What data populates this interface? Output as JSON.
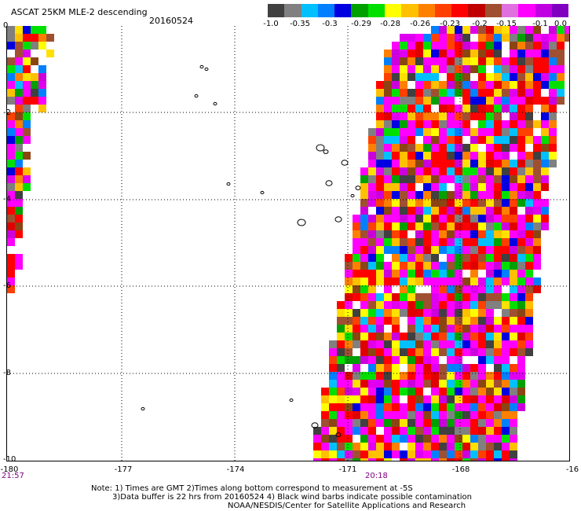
{
  "header": {
    "title": "ASCAT 25KM MLE-2 descending",
    "date": "20160524"
  },
  "colorbar": {
    "colors": [
      "#404040",
      "#808080",
      "#00c0ff",
      "#0080ff",
      "#0000e0",
      "#00a000",
      "#00e000",
      "#ffff00",
      "#ffc000",
      "#ff8000",
      "#ff4000",
      "#ff0000",
      "#c00000",
      "#a05030",
      "#e070e0",
      "#ff00ff",
      "#c000e0",
      "#8000c0"
    ],
    "labels": [
      "-1.0",
      "-0.35",
      "-0.3",
      "-0.29",
      "-0.28",
      "-0.26",
      "-0.23",
      "-0.2",
      "-0.15",
      "-0.1",
      "0.0"
    ]
  },
  "axes": {
    "x_ticks": [
      "-180",
      "-177",
      "-174",
      "-171",
      "-168",
      "-16"
    ],
    "y_ticks": [
      "0",
      "-2",
      "-4",
      "-6",
      "-8",
      "-10"
    ]
  },
  "times": {
    "left": "21:57",
    "center": "20:18"
  },
  "notes": {
    "line1": "Note: 1) Times are GMT 2)Times along bottom correspond to measurement at -5S",
    "line2": "3)Data buffer is 22 hrs from 20160524 4) Black wind barbs indicate possible contamination",
    "line3": "NOAA/NESDIS/Center for Satellite Applications and Research"
  }
}
